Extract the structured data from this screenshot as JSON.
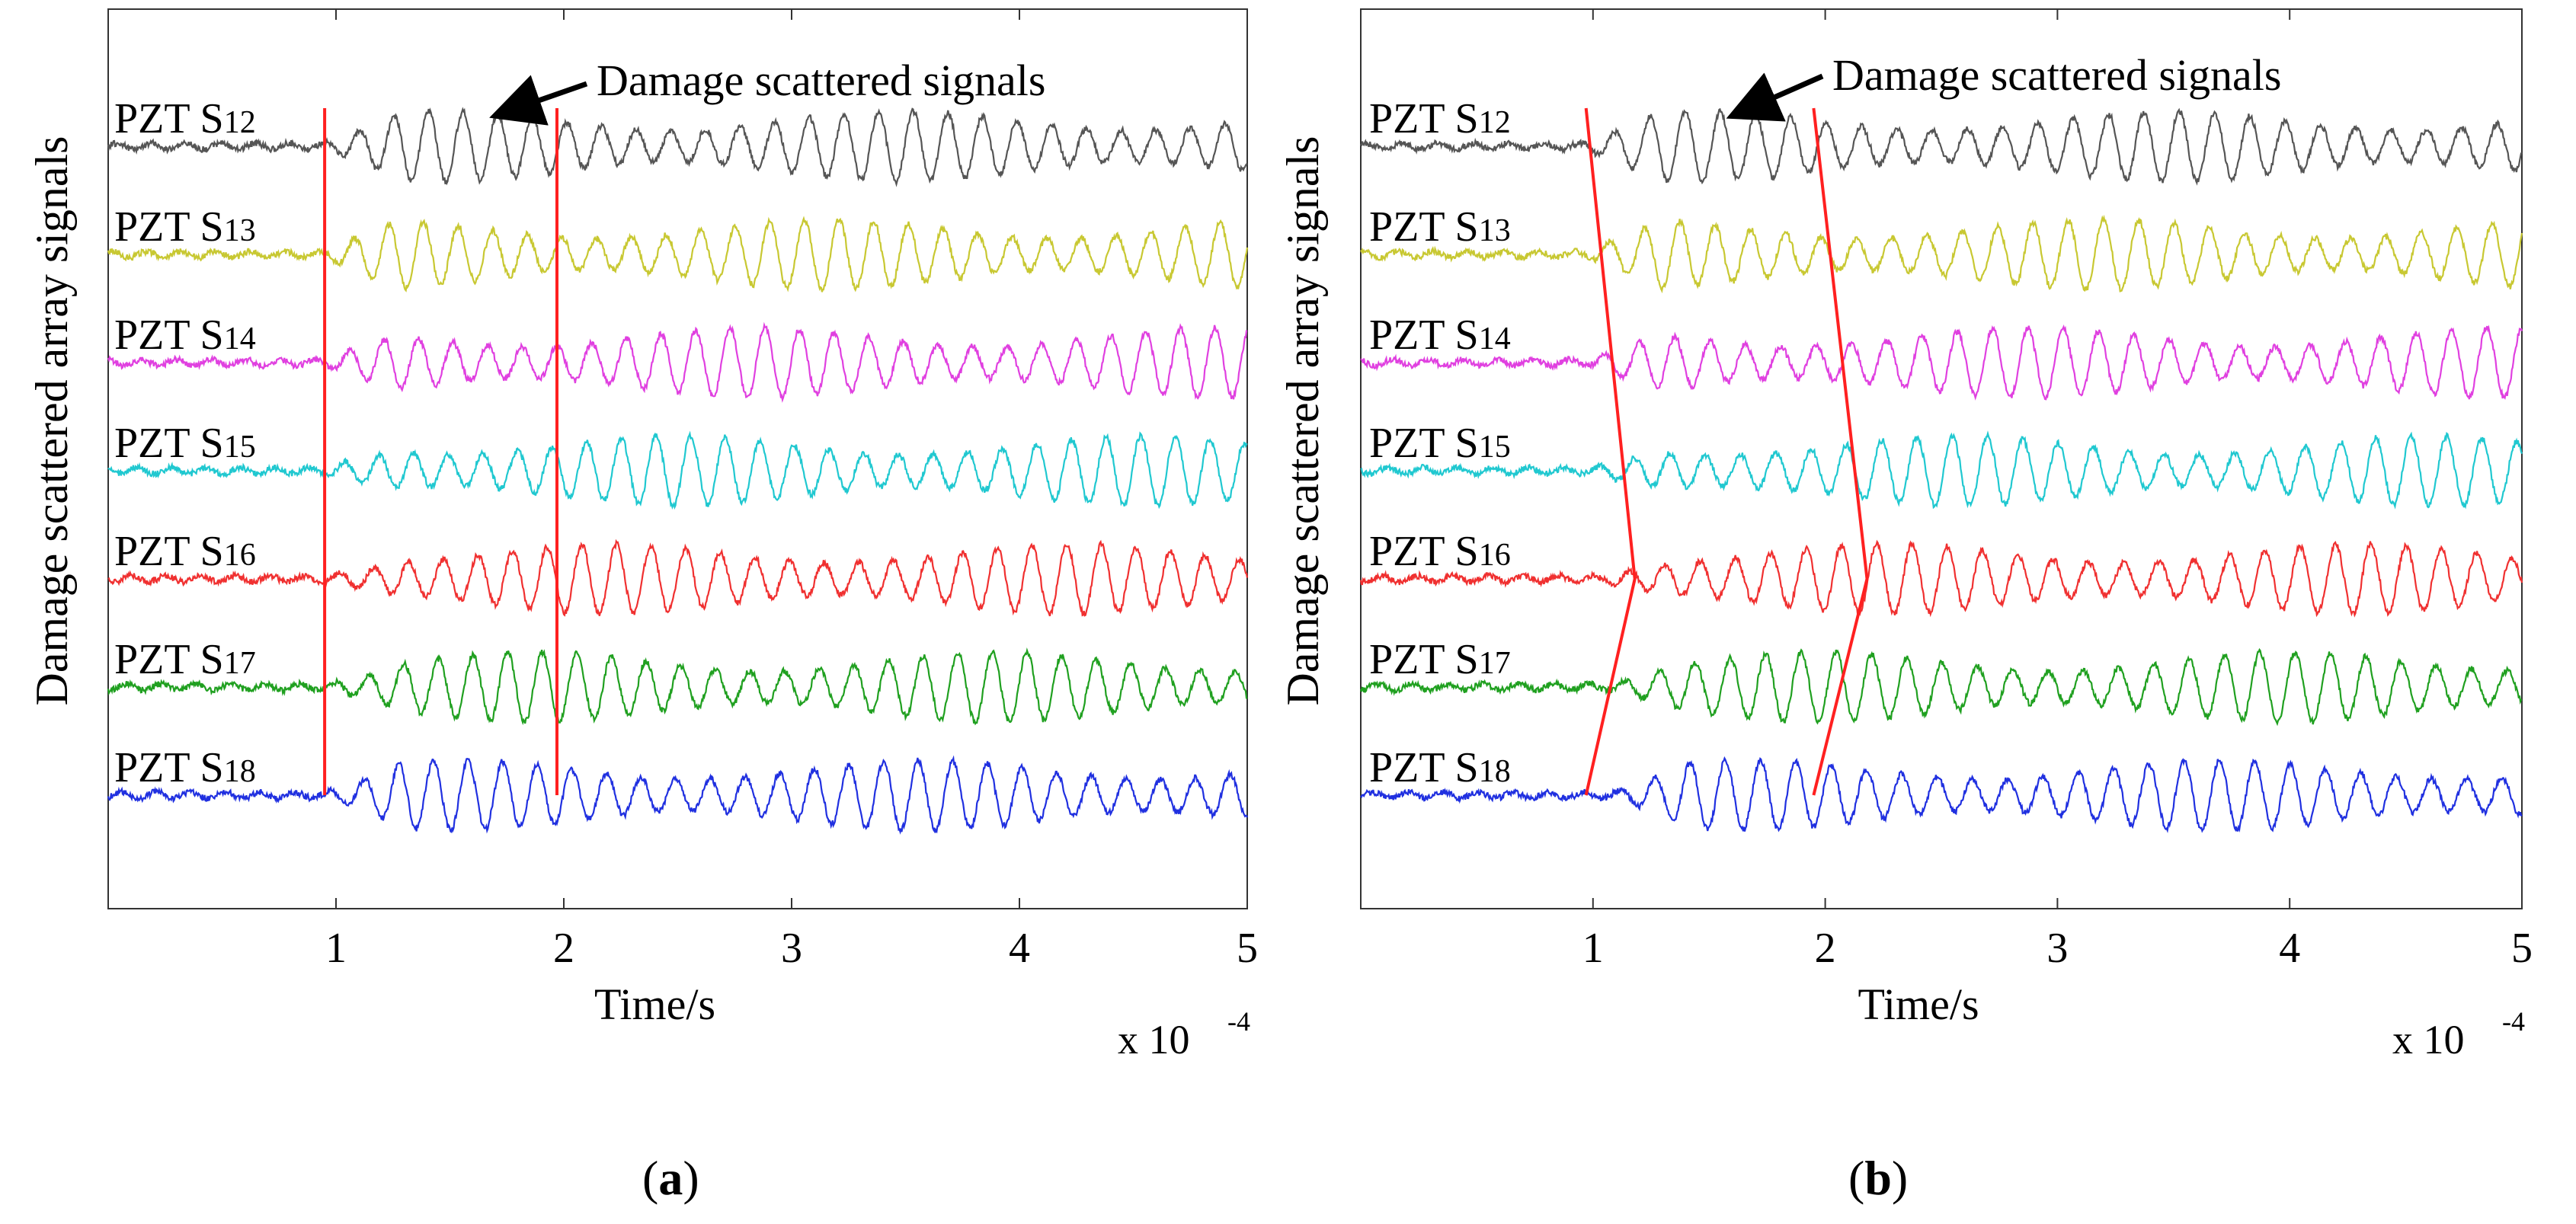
{
  "figure": {
    "panels": [
      {
        "caption_open": "(",
        "caption_letter": "a",
        "caption_close": ")"
      },
      {
        "caption_open": "(",
        "caption_letter": "b",
        "caption_close": ")"
      }
    ]
  },
  "chart_data": [
    {
      "type": "line",
      "panel": "a",
      "xlabel": "Time/s",
      "ylabel": "Damage scattered array signals",
      "x_scale_label": "x 10",
      "x_scale_exponent": "-4",
      "xlim": [
        0,
        5
      ],
      "x_ticks": [
        "1",
        "2",
        "3",
        "4",
        "5"
      ],
      "annotation": "Damage scattered signals",
      "annotation_arrow_target": {
        "x": 1.65
      },
      "series": [
        {
          "name_prefix": "PZT S",
          "name_sub": "12",
          "color": "#555555"
        },
        {
          "name_prefix": "PZT S",
          "name_sub": "13",
          "color": "#c8c832"
        },
        {
          "name_prefix": "PZT S",
          "name_sub": "14",
          "color": "#e040e0"
        },
        {
          "name_prefix": "PZT S",
          "name_sub": "15",
          "color": "#20c8d0"
        },
        {
          "name_prefix": "PZT S",
          "name_sub": "16",
          "color": "#f03030"
        },
        {
          "name_prefix": "PZT S",
          "name_sub": "17",
          "color": "#20a020"
        },
        {
          "name_prefix": "PZT S",
          "name_sub": "18",
          "color": "#2030e0"
        }
      ],
      "arrival_markers": [
        {
          "points": [
            [
              0.95,
              0
            ],
            [
              0.95,
              6
            ]
          ]
        },
        {
          "points": [
            [
              1.97,
              0
            ],
            [
              1.97,
              6
            ]
          ]
        }
      ]
    },
    {
      "type": "line",
      "panel": "b",
      "xlabel": "Time/s",
      "ylabel": "Damage scattered array signals",
      "x_scale_label": "x 10",
      "x_scale_exponent": "-4",
      "xlim": [
        0,
        5
      ],
      "x_ticks": [
        "1",
        "2",
        "3",
        "4",
        "5"
      ],
      "annotation": "Damage scattered signals",
      "annotation_arrow_target": {
        "x": 1.55
      },
      "series": [
        {
          "name_prefix": "PZT S",
          "name_sub": "12",
          "color": "#555555"
        },
        {
          "name_prefix": "PZT S",
          "name_sub": "13",
          "color": "#c8c832"
        },
        {
          "name_prefix": "PZT S",
          "name_sub": "14",
          "color": "#e040e0"
        },
        {
          "name_prefix": "PZT S",
          "name_sub": "15",
          "color": "#20c8d0"
        },
        {
          "name_prefix": "PZT S",
          "name_sub": "16",
          "color": "#f03030"
        },
        {
          "name_prefix": "PZT S",
          "name_sub": "17",
          "color": "#20a020"
        },
        {
          "name_prefix": "PZT S",
          "name_sub": "18",
          "color": "#2030e0"
        }
      ],
      "arrival_markers": [
        {
          "points": [
            [
              0.97,
              0
            ],
            [
              1.18,
              4
            ],
            [
              0.97,
              6
            ]
          ]
        },
        {
          "points": [
            [
              1.95,
              0
            ],
            [
              2.18,
              4
            ],
            [
              1.95,
              6
            ]
          ]
        }
      ]
    }
  ]
}
